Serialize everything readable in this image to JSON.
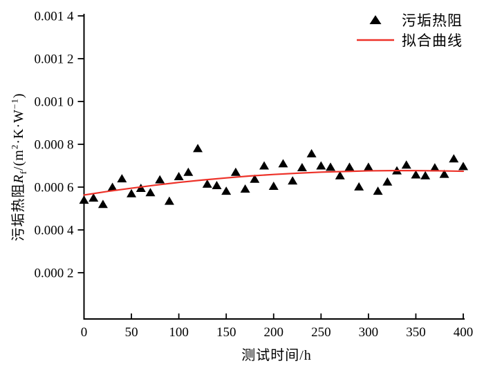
{
  "chart_data": {
    "type": "scatter",
    "title": "",
    "xlabel": "测试时间/h",
    "ylabel": "污垢热阻Rf/(m2·K·W-1)",
    "grid": false,
    "legend_position": "top-right",
    "x_axis": {
      "min": 0,
      "max": 400,
      "ticks": [
        {
          "value": 0,
          "label": "0"
        },
        {
          "value": 50,
          "label": "50"
        },
        {
          "value": 100,
          "label": "100"
        },
        {
          "value": 150,
          "label": "150"
        },
        {
          "value": 200,
          "label": "200"
        },
        {
          "value": 250,
          "label": "250"
        },
        {
          "value": 300,
          "label": "300"
        },
        {
          "value": 350,
          "label": "350"
        },
        {
          "value": 400,
          "label": "400"
        }
      ]
    },
    "y_axis": {
      "min": 0,
      "max": 0.0014,
      "ticks": [
        {
          "value": 0.0002,
          "label": "0.000 2"
        },
        {
          "value": 0.0004,
          "label": "0.000 4"
        },
        {
          "value": 0.0006,
          "label": "0.000 6"
        },
        {
          "value": 0.0008,
          "label": "0.000 8"
        },
        {
          "value": 0.001,
          "label": "0.001 0"
        },
        {
          "value": 0.0012,
          "label": "0.001 2"
        },
        {
          "value": 0.0014,
          "label": "0.001 4"
        }
      ]
    },
    "series": [
      {
        "name": "污垢热阻",
        "type": "scatter",
        "marker": "triangle",
        "color": "#000000",
        "x": [
          0,
          10,
          20,
          30,
          40,
          50,
          60,
          70,
          80,
          90,
          100,
          110,
          120,
          130,
          140,
          150,
          160,
          170,
          180,
          190,
          200,
          210,
          220,
          230,
          240,
          250,
          260,
          270,
          280,
          290,
          300,
          310,
          320,
          330,
          340,
          350,
          360,
          370,
          380,
          390,
          400
        ],
        "y": [
          0.00054,
          0.00055,
          0.00052,
          0.0006,
          0.00064,
          0.00057,
          0.000595,
          0.000575,
          0.000635,
          0.000535,
          0.00065,
          0.00067,
          0.000781,
          0.000615,
          0.000608,
          0.000582,
          0.00067,
          0.000592,
          0.000638,
          0.0007,
          0.000605,
          0.00071,
          0.00063,
          0.000692,
          0.000757,
          0.0007,
          0.000694,
          0.000654,
          0.000694,
          0.000602,
          0.000694,
          0.000582,
          0.000625,
          0.000677,
          0.000704,
          0.000658,
          0.000654,
          0.000691,
          0.000661,
          0.000733,
          0.000697
        ]
      },
      {
        "name": "拟合曲线",
        "type": "line",
        "color": "#ed3128",
        "x": [
          0,
          25,
          50,
          75,
          100,
          125,
          150,
          175,
          200,
          225,
          250,
          275,
          300,
          325,
          350,
          375,
          400
        ],
        "y": [
          0.000563,
          0.00058,
          0.000595,
          0.000609,
          0.000622,
          0.000633,
          0.000643,
          0.000652,
          0.000659,
          0.000665,
          0.00067,
          0.000673,
          0.000676,
          0.000677,
          0.000677,
          0.000676,
          0.000674
        ]
      }
    ]
  },
  "axes": {
    "x": {
      "title": "测试时间/h"
    },
    "y": {
      "title_prefix": "污垢热阻",
      "title_symbol": "R",
      "title_symbol_sub": "f",
      "unit_open": "/(",
      "unit_m": "m",
      "unit_m_exp": "2",
      "unit_kw": "·K·W",
      "unit_w_exp": "−1",
      "unit_close": ")"
    }
  },
  "legend": {
    "scatter_label": "污垢热阻",
    "fit_label": "拟合曲线"
  },
  "colors": {
    "axis": "#000000",
    "marker": "#000000",
    "fit_line": "#ed3128",
    "background": "#ffffff"
  }
}
